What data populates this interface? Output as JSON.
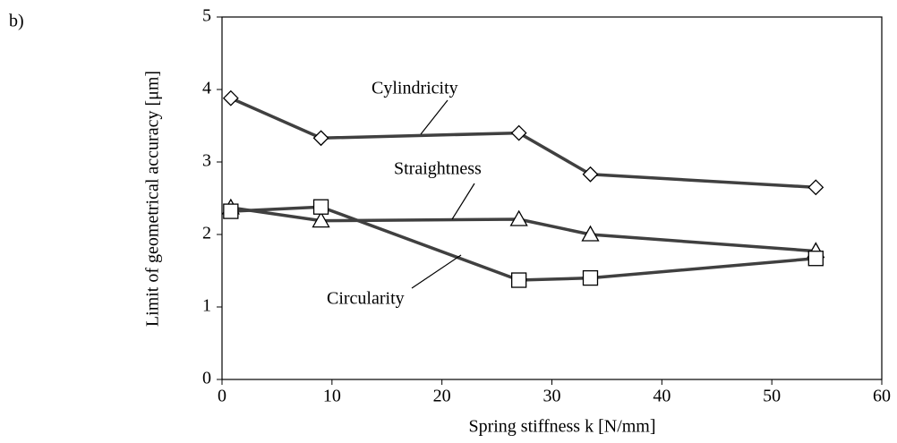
{
  "chart_data": {
    "type": "line",
    "panel_label": "b)",
    "xlabel": "Spring stiffness  k   [N/mm]",
    "ylabel": "Limit of geometrical accuracy [μm]",
    "x": [
      0.8,
      9,
      27,
      33.5,
      54
    ],
    "series": [
      {
        "name": "Cylindricity",
        "color": "#404040",
        "marker": "diamond",
        "values": [
          3.88,
          3.33,
          3.4,
          2.83,
          2.65
        ]
      },
      {
        "name": "Straightness",
        "color": "#404040",
        "marker": "triangle",
        "values": [
          2.37,
          2.19,
          2.21,
          2.0,
          1.77
        ]
      },
      {
        "name": "Circularity",
        "color": "#404040",
        "marker": "square",
        "values": [
          2.32,
          2.38,
          1.37,
          1.4,
          1.67
        ]
      }
    ],
    "xlim": [
      0,
      60
    ],
    "xticks": [
      0,
      10,
      20,
      30,
      40,
      50,
      60
    ],
    "ylim": [
      0,
      5
    ],
    "yticks": [
      0,
      1,
      2,
      3,
      4,
      5
    ],
    "grid": false
  }
}
